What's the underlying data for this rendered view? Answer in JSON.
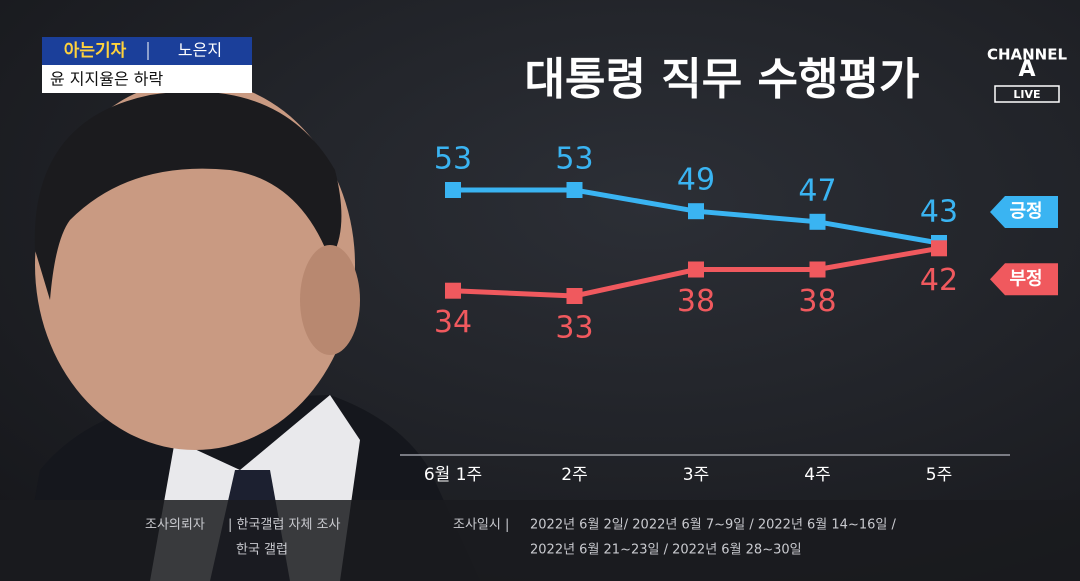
{
  "header": {
    "segment": "아는기자",
    "reporter": "노은지",
    "headline": "윤 지지율은 하락"
  },
  "logo": {
    "name": "CHANNEL",
    "letter": "A",
    "badge": "LIVE"
  },
  "chart_data": {
    "type": "line",
    "title": "대통령 직무 수행평가",
    "categories": [
      "6월 1주",
      "2주",
      "3주",
      "4주",
      "5주"
    ],
    "series": [
      {
        "name": "긍정",
        "color": "#3ab4f2",
        "values": [
          53,
          53,
          49,
          47,
          43
        ]
      },
      {
        "name": "부정",
        "color": "#f0595e",
        "values": [
          34,
          33,
          38,
          38,
          42
        ]
      }
    ]
  },
  "footer": {
    "sponsor_label": "조사의뢰자",
    "sponsor": "| 한국갤럽 자체 조사",
    "sponsor2": "한국 갤럽",
    "dates_label": "조사일시 |",
    "dates1": "2022년 6월 2일/ 2022년 6월 7~9일 / 2022년 6월 14~16일 /",
    "dates2": "2022년 6월 21~23일 / 2022년 6월 28~30일"
  }
}
